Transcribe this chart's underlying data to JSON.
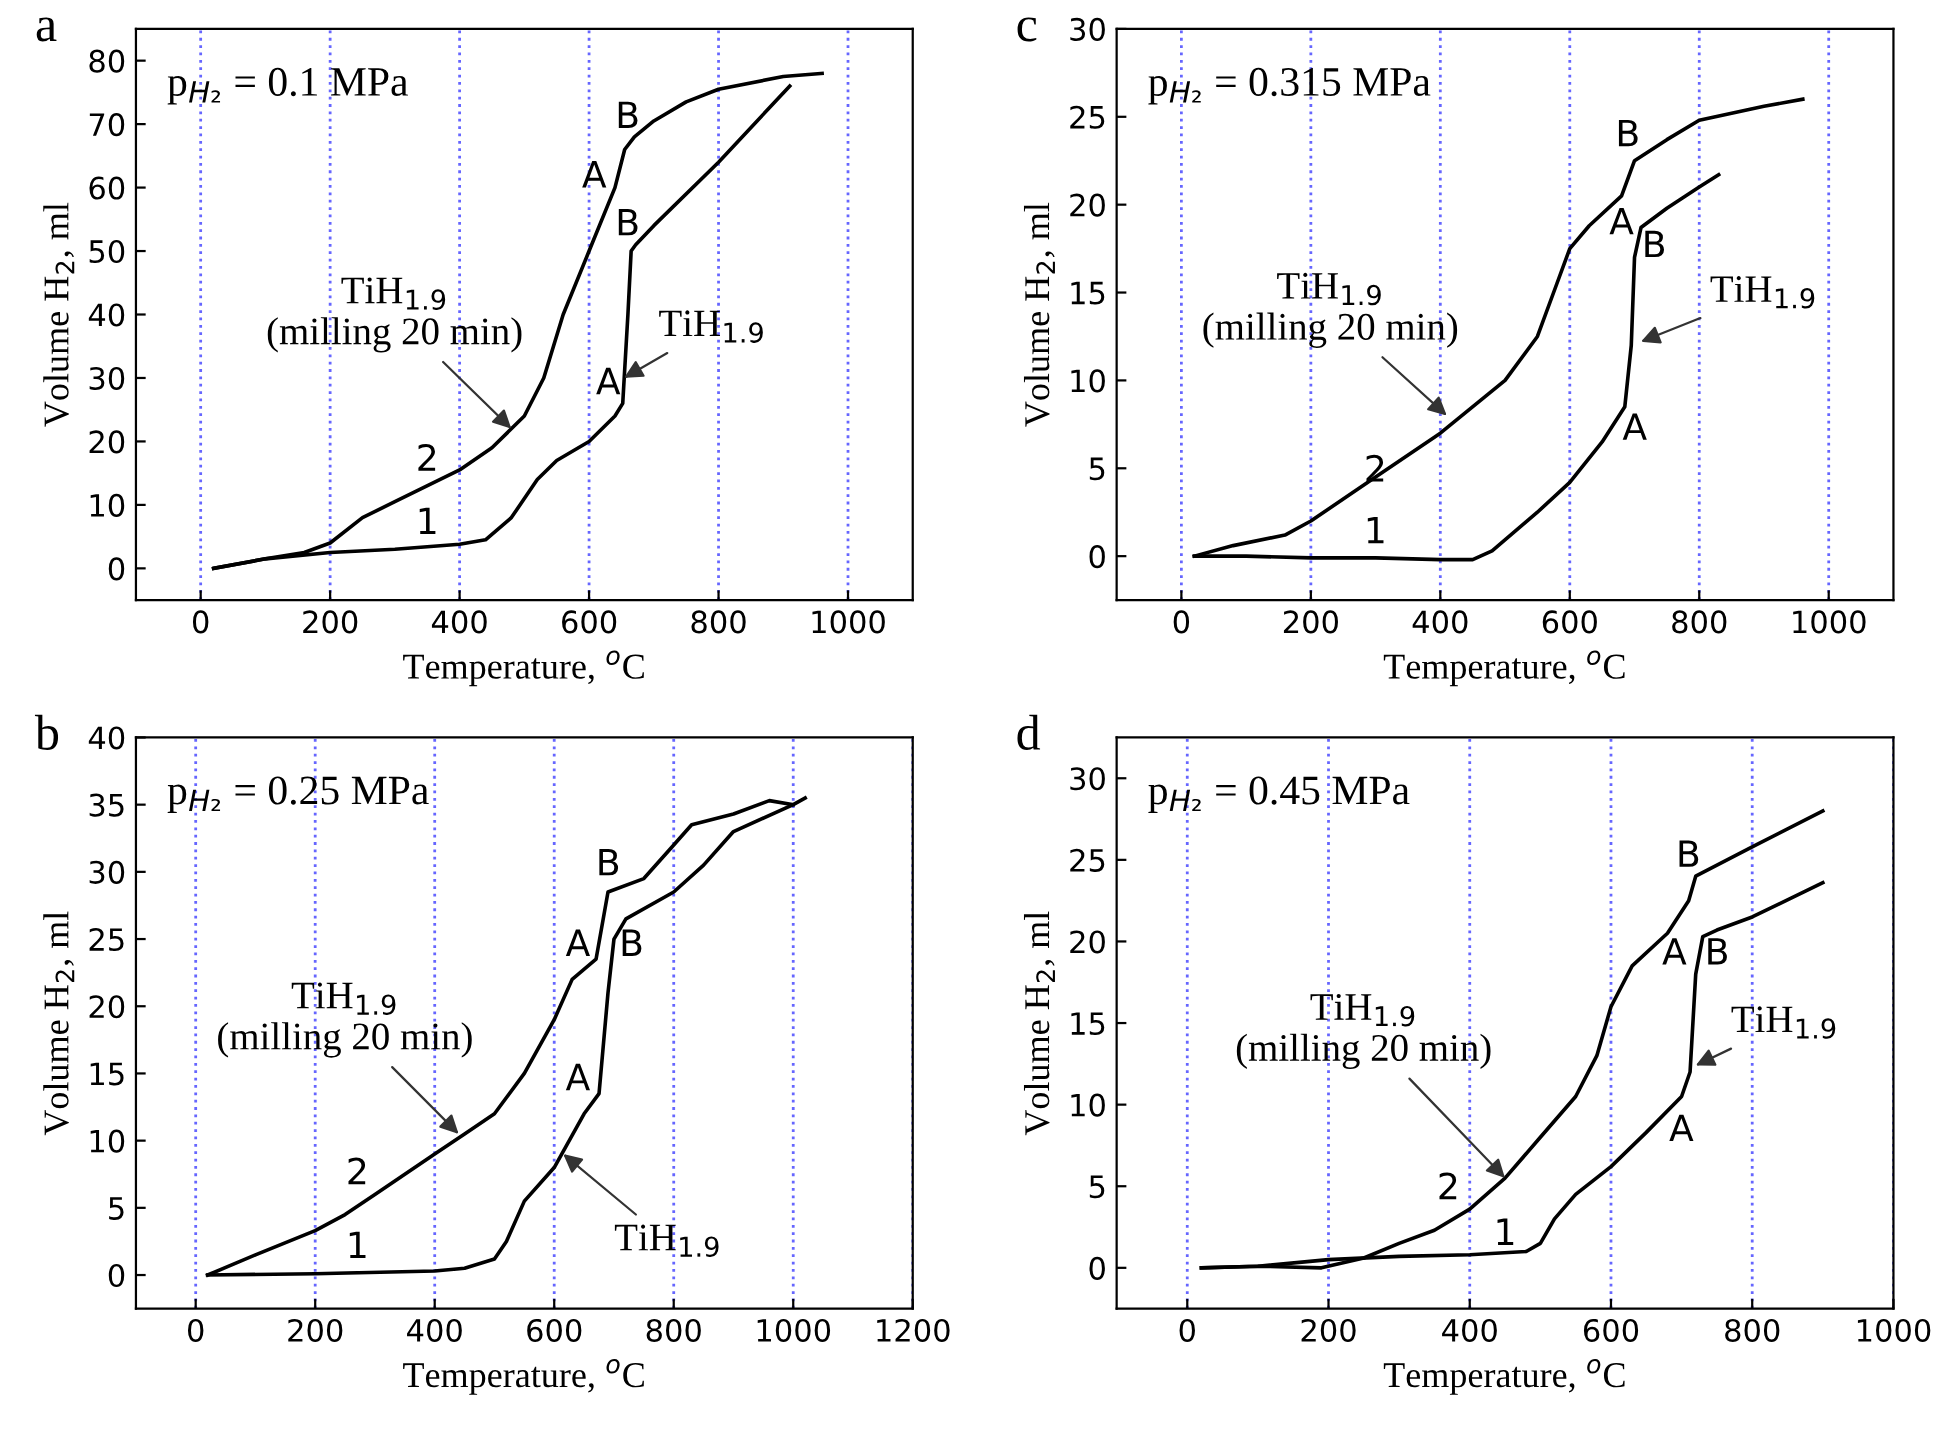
{
  "chart_data": [
    {
      "type": "line",
      "title": "a",
      "xlabel": "Temperature, $^{o}$C",
      "ylabel": "Volume H$_{2}$, ml",
      "xlim": [
        -100,
        1100
      ],
      "ylim": [
        -5,
        85
      ],
      "xticks": [
        0,
        200,
        400,
        600,
        800,
        1000
      ],
      "yticks": [
        0,
        10,
        20,
        30,
        40,
        50,
        60,
        70,
        80
      ],
      "grid": "x",
      "marker": "none",
      "line_style": "solid",
      "series": [
        {
          "color": "#000000",
          "x": [
            20,
            100,
            200,
            300,
            400,
            440,
            480,
            520,
            550,
            600,
            640,
            652,
            660,
            665,
            672,
            700,
            800,
            910
          ],
          "values": [
            0,
            1.5,
            2.5,
            3,
            3.8,
            4.5,
            8,
            14,
            17,
            20,
            24,
            26,
            40,
            50,
            51,
            54,
            64,
            76
          ]
        },
        {
          "color": "#000000",
          "x": [
            20,
            100,
            160,
            200,
            250,
            300,
            400,
            450,
            500,
            530,
            560,
            600,
            640,
            655,
            670,
            700,
            750,
            800,
            900,
            960
          ],
          "values": [
            0,
            1.5,
            2.5,
            4,
            8,
            10.5,
            15.5,
            19,
            24,
            30,
            40,
            50,
            60,
            66,
            68,
            70.5,
            73.5,
            75.5,
            77.5,
            78
          ]
        }
      ],
      "annotations": [
        "p$_{H₂}$ = 0.1 MPa",
        "1",
        "2",
        "A",
        "A",
        "B",
        "B",
        {
          "text": "TiH$_{1.9}$\n(milling 20 min)",
          "x": 480,
          "y": 22
        },
        {
          "text": "TiH$_{1.9}$",
          "x": 654,
          "y": 30
        }
      ]
    },
    {
      "type": "line",
      "title": "c",
      "xlabel": "Temperature, $^{o}$C",
      "ylabel": "Volume H$_{2}$, ml",
      "xlim": [
        -100,
        1100
      ],
      "ylim": [
        -2.5,
        30
      ],
      "xticks": [
        0,
        200,
        400,
        600,
        800,
        1000
      ],
      "yticks": [
        0,
        5,
        10,
        15,
        20,
        25,
        30
      ],
      "grid": "x",
      "marker": "none",
      "line_style": "solid",
      "series": [
        {
          "color": "#000000",
          "x": [
            20,
            100,
            200,
            300,
            400,
            450,
            480,
            550,
            600,
            650,
            685,
            695,
            700,
            710,
            750,
            800,
            830
          ],
          "values": [
            0,
            0,
            -0.1,
            -0.1,
            -0.2,
            -0.2,
            0.3,
            2.5,
            4.2,
            6.5,
            8.5,
            12,
            17,
            18.7,
            19.8,
            21,
            21.7
          ]
        },
        {
          "color": "#000000",
          "x": [
            20,
            80,
            160,
            200,
            300,
            400,
            500,
            550,
            580,
            600,
            630,
            680,
            700,
            750,
            800,
            900,
            960
          ],
          "values": [
            0,
            0.6,
            1.2,
            2,
            4.5,
            7,
            10,
            12.5,
            15.5,
            17.5,
            18.8,
            20.5,
            22.5,
            23.7,
            24.8,
            25.6,
            26
          ]
        }
      ],
      "annotations": [
        "p$_{H₂}$ = 0.315 MPa",
        "1",
        "2",
        "A",
        "A",
        "B",
        "B",
        {
          "text": "TiH$_{1.9}$\n(milling 20 min)",
          "x": 410,
          "y": 8
        },
        {
          "text": "TiH$_{1.9}$",
          "x": 710,
          "y": 12.2
        }
      ]
    },
    {
      "type": "line",
      "title": "b",
      "xlabel": "Temperature, $^{o}$C",
      "ylabel": "Volume H$_{2}$, ml",
      "xlim": [
        -100,
        1200
      ],
      "ylim": [
        -2.5,
        40
      ],
      "xticks": [
        0,
        200,
        400,
        600,
        800,
        1000,
        1200
      ],
      "yticks": [
        0,
        5,
        10,
        15,
        20,
        25,
        30,
        35,
        40
      ],
      "grid": "x",
      "marker": "none",
      "line_style": "solid",
      "series": [
        {
          "color": "#000000",
          "x": [
            20,
            200,
            400,
            450,
            500,
            520,
            550,
            600,
            650,
            675,
            690,
            700,
            720,
            800,
            850,
            900,
            1000,
            1020
          ],
          "values": [
            0,
            0.1,
            0.3,
            0.5,
            1.2,
            2.5,
            5.5,
            8,
            12,
            13.5,
            21,
            25,
            26.5,
            28.5,
            30.5,
            33,
            35,
            35.5
          ]
        },
        {
          "color": "#000000",
          "x": [
            20,
            100,
            200,
            250,
            300,
            400,
            450,
            500,
            550,
            600,
            630,
            670,
            690,
            750,
            800,
            830,
            900,
            960,
            1000
          ],
          "values": [
            0,
            1.5,
            3.3,
            4.5,
            6,
            9,
            10.5,
            12,
            15,
            19,
            22,
            23.5,
            28.5,
            29.5,
            32,
            33.5,
            34.3,
            35.3,
            35
          ]
        }
      ],
      "annotations": [
        "p$_{H₂}$ = 0.25 MPa",
        "1",
        "2",
        "A",
        "A",
        "B",
        "B",
        {
          "text": "TiH$_{1.9}$\n(milling 20 min)",
          "x": 440,
          "y": 10.5
        },
        {
          "text": "TiH$_{1.9}$",
          "x": 615,
          "y": 9
        }
      ]
    },
    {
      "type": "line",
      "title": "d",
      "xlabel": "Temperature, $^{o}$C",
      "ylabel": "Volume H$_{2}$, ml",
      "xlim": [
        -100,
        1000
      ],
      "ylim": [
        -2.5,
        32.5
      ],
      "xticks": [
        0,
        200,
        400,
        600,
        800,
        1000
      ],
      "yticks": [
        0,
        5,
        10,
        15,
        20,
        25,
        30
      ],
      "grid": "x",
      "marker": "none",
      "line_style": "solid",
      "series": [
        {
          "color": "#000000",
          "x": [
            20,
            100,
            200,
            300,
            400,
            480,
            500,
            520,
            550,
            600,
            650,
            700,
            712,
            720,
            730,
            750,
            800,
            900
          ],
          "values": [
            0,
            0.1,
            0.5,
            0.7,
            0.8,
            1,
            1.5,
            3,
            4.5,
            6.2,
            8.3,
            10.5,
            12,
            18,
            20.3,
            20.7,
            21.5,
            23.6
          ]
        },
        {
          "color": "#000000",
          "x": [
            20,
            100,
            190,
            250,
            300,
            350,
            400,
            450,
            500,
            550,
            580,
            600,
            630,
            680,
            710,
            720,
            800,
            900
          ],
          "values": [
            0,
            0.1,
            0,
            0.6,
            1.5,
            2.3,
            3.6,
            5.5,
            8,
            10.5,
            13,
            16,
            18.5,
            20.5,
            22.5,
            24,
            25.8,
            28
          ]
        }
      ],
      "annotations": [
        "p$_{H₂}$ = 0.45 MPa",
        "1",
        "2",
        "A",
        "A",
        "B",
        "B",
        {
          "text": "TiH$_{1.9}$\n(milling 20 min)",
          "x": 450,
          "y": 5.5
        },
        {
          "text": "TiH$_{1.9}$",
          "x": 720,
          "y": 12.4
        }
      ]
    }
  ]
}
